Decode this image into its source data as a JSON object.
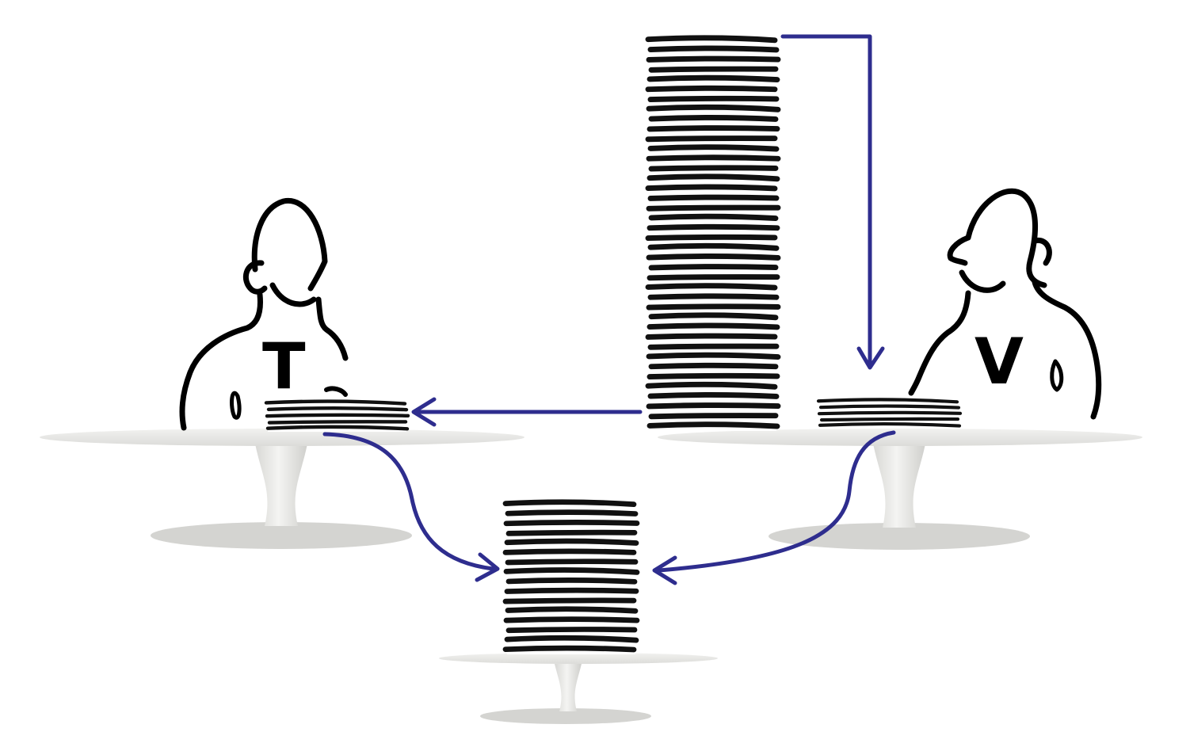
{
  "figure": {
    "left_person_label": "T",
    "right_person_label": "V"
  },
  "colors": {
    "arrow": "#2e2d8e",
    "plate_stripe": "#111111",
    "table_top": "#ececea",
    "table_shadow": "#c9c9c6",
    "table_stem": "#e3e3e0",
    "outline": "#000000"
  },
  "stacks": {
    "source_plate_count": 40,
    "left_plate_count": 5,
    "right_plate_count": 5,
    "pooled_plate_count": 16
  }
}
